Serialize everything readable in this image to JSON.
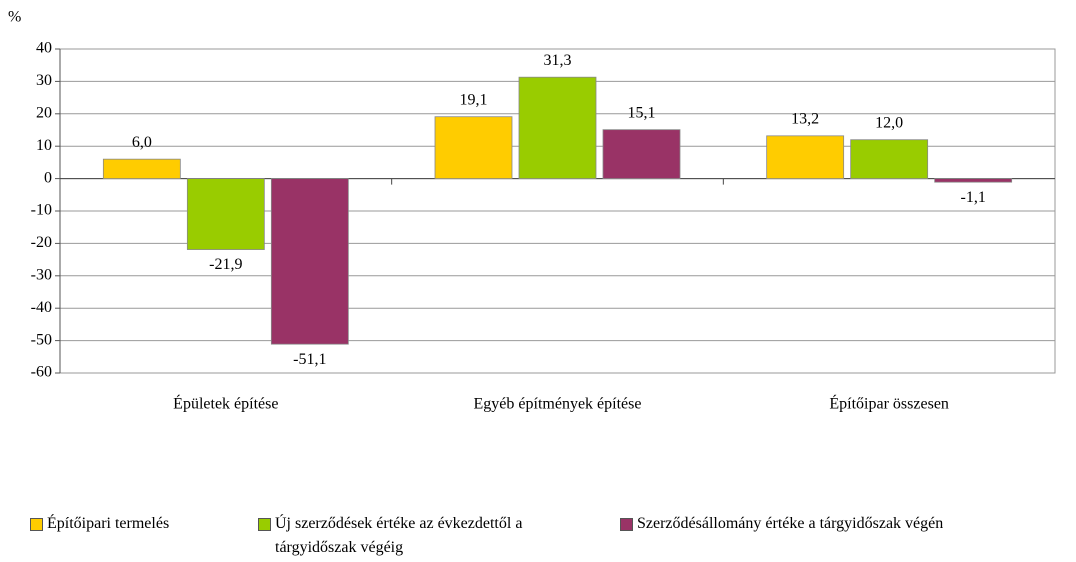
{
  "chart_data": {
    "type": "bar",
    "y_label": "%",
    "categories": [
      "Épületek építése",
      "Egyéb építmények építése",
      "Építőipar összesen"
    ],
    "series": [
      {
        "name": "Építőipari termelés",
        "color": "#FFCC00",
        "values": [
          6.0,
          19.1,
          13.2
        ],
        "value_labels": [
          "6,0",
          "19,1",
          "13,2"
        ]
      },
      {
        "name": "Új szerződések értéke az évkezdettől a tárgyidőszak végéig",
        "color": "#99CC00",
        "values": [
          -21.9,
          31.3,
          12.0
        ],
        "value_labels": [
          "-21,9",
          "31,3",
          "12,0"
        ]
      },
      {
        "name": "Szerződésállomány értéke a tárgyidőszak végén",
        "color": "#993366",
        "values": [
          -51.1,
          15.1,
          -1.1
        ],
        "value_labels": [
          "-51,1",
          "15,1",
          "-1,1"
        ]
      }
    ],
    "ylim": [
      -60,
      40
    ],
    "yticks": [
      -60,
      -50,
      -40,
      -30,
      -20,
      -10,
      0,
      10,
      20,
      30,
      40
    ],
    "legend": "bottom"
  }
}
